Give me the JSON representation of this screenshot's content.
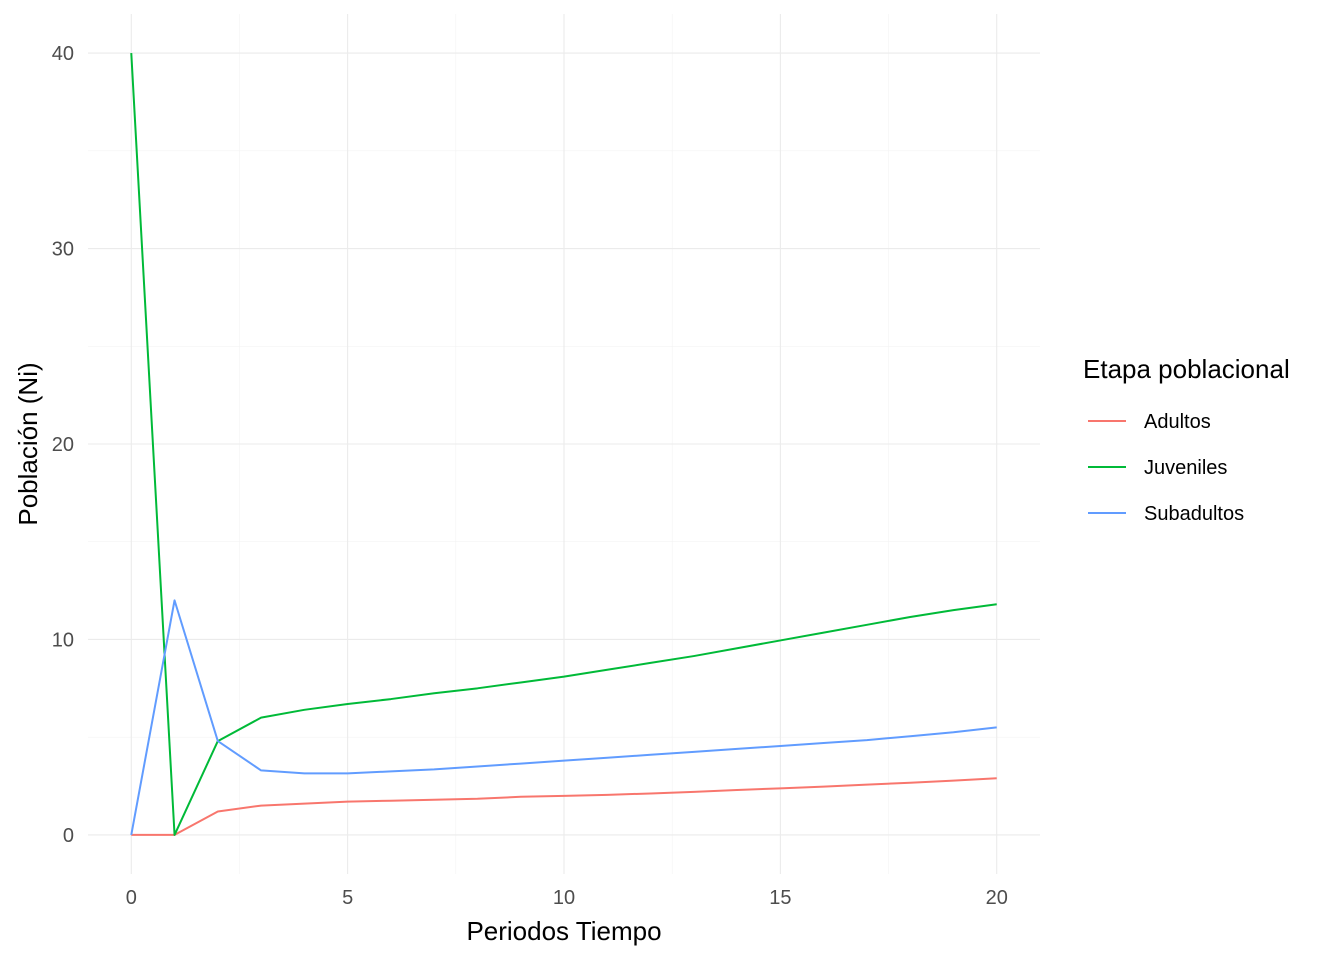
{
  "chart_data": {
    "type": "line",
    "xlabel": "Periodos Tiempo",
    "ylabel": "Población (Ni)",
    "xlim": [
      -1,
      21
    ],
    "ylim": [
      -2,
      42
    ],
    "x_major_ticks": [
      0,
      5,
      10,
      15,
      20
    ],
    "x_minor_ticks": [
      2.5,
      7.5,
      12.5,
      17.5
    ],
    "y_major_ticks": [
      0,
      10,
      20,
      30,
      40
    ],
    "y_minor_ticks": [
      5,
      15,
      25,
      35
    ],
    "grid": true,
    "legend": {
      "title": "Etapa poblacional",
      "position": "right"
    },
    "x": [
      0,
      1,
      2,
      3,
      4,
      5,
      6,
      7,
      8,
      9,
      10,
      11,
      12,
      13,
      14,
      15,
      16,
      17,
      18,
      19,
      20
    ],
    "series": [
      {
        "name": "Adultos",
        "color": "#F8766D",
        "values": [
          0,
          0,
          1.2,
          1.5,
          1.6,
          1.7,
          1.75,
          1.8,
          1.85,
          1.95,
          2.0,
          2.05,
          2.12,
          2.2,
          2.3,
          2.38,
          2.47,
          2.57,
          2.67,
          2.78,
          2.9
        ]
      },
      {
        "name": "Juveniles",
        "color": "#00BA38",
        "values": [
          40,
          0,
          4.8,
          6.0,
          6.4,
          6.7,
          6.95,
          7.25,
          7.5,
          7.8,
          8.1,
          8.45,
          8.8,
          9.15,
          9.55,
          9.95,
          10.35,
          10.75,
          11.15,
          11.5,
          11.8
        ]
      },
      {
        "name": "Subadultos",
        "color": "#619CFF",
        "values": [
          0,
          12,
          4.8,
          3.3,
          3.15,
          3.15,
          3.25,
          3.35,
          3.5,
          3.65,
          3.8,
          3.95,
          4.1,
          4.25,
          4.4,
          4.55,
          4.7,
          4.85,
          5.05,
          5.25,
          5.5
        ]
      }
    ]
  }
}
